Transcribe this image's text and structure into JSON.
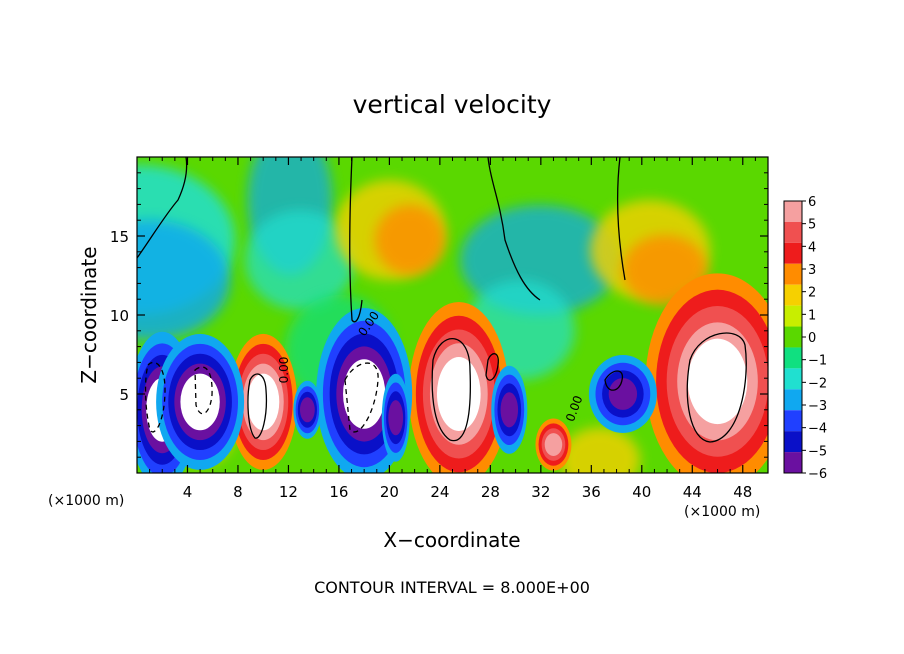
{
  "chart_data": {
    "type": "heatmap",
    "title": "vertical velocity",
    "xlabel": "X−coordinate",
    "ylabel": "Z−coordinate",
    "x_unit": "(×1000 m)",
    "z_unit": "(×1000 m)",
    "xlim": [
      0,
      50
    ],
    "ylim": [
      0,
      20
    ],
    "xticks": [
      4,
      8,
      12,
      16,
      20,
      24,
      28,
      32,
      36,
      40,
      44,
      48
    ],
    "yticks": [
      5,
      10,
      15
    ],
    "colorbar": {
      "ticks": [
        "6",
        "5",
        "4",
        "3",
        "2",
        "1",
        "0",
        "−1",
        "−2",
        "−3",
        "−4",
        "−5",
        "−6"
      ],
      "levels": [
        6,
        5,
        4,
        3,
        2,
        1,
        0,
        -1,
        -2,
        -3,
        -4,
        -5,
        -6
      ],
      "colors": [
        "#f5a0a0",
        "#f05050",
        "#ee1c1c",
        "#ff8c00",
        "#f6d000",
        "#c8ee00",
        "#5ad800",
        "#10e080",
        "#20e0d0",
        "#10a8f0",
        "#2040ff",
        "#0a10c8",
        "#6a10a0"
      ]
    },
    "contour_labels": [
      "0.00",
      "0.00",
      "0.00"
    ],
    "contour_interval_text": "CONTOUR INTERVAL = 8.000E+00",
    "features": [
      {
        "kind": "updraft",
        "x": 10,
        "z": 4.5,
        "peak": 8
      },
      {
        "kind": "updraft",
        "x": 25.5,
        "z": 5,
        "peak": 9
      },
      {
        "kind": "updraft",
        "x": 46,
        "z": 5.8,
        "peak": 10
      },
      {
        "kind": "downdraft",
        "x": 2,
        "z": 4,
        "peak": -8
      },
      {
        "kind": "downdraft",
        "x": 5,
        "z": 4.5,
        "peak": -8
      },
      {
        "kind": "downdraft",
        "x": 18,
        "z": 5,
        "peak": -8
      }
    ]
  }
}
